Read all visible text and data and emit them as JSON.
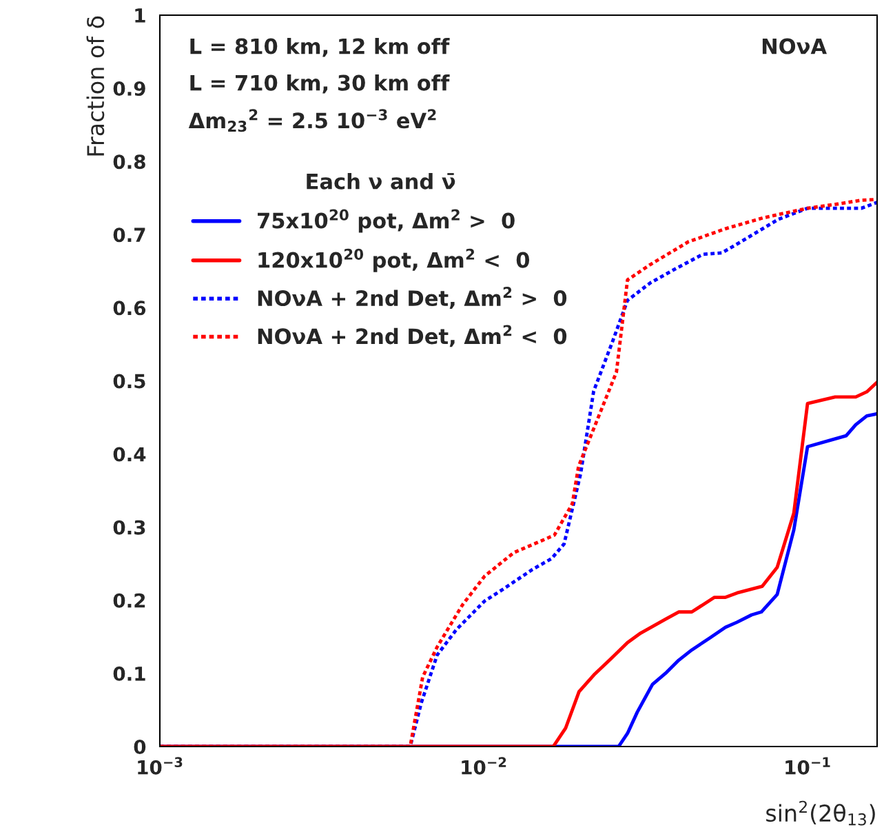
{
  "chart_data": {
    "type": "line",
    "xlabel": "sin$^{2}$(2θ$_{13}$)",
    "ylabel": "Fraction of δ",
    "legend_title": "Each ν and ν̄",
    "legend": "top left",
    "grid": false,
    "log": "x",
    "xlim": [
      0.001,
      0.164
    ],
    "xticks": [
      {
        "value": 0.001,
        "label": "10$^{−3}$"
      },
      {
        "value": 0.01,
        "label": "10$^{−2}$"
      },
      {
        "value": 0.1,
        "label": "10$^{−1}$"
      }
    ],
    "ylim": [
      0,
      1
    ],
    "yticks": [
      0,
      0.1,
      0.2,
      0.3,
      0.4,
      0.5,
      0.6,
      0.7,
      0.8,
      0.9,
      1
    ],
    "annotations": [
      "L = 810 km, 12 km off",
      "L = 710 km, 30 km off",
      "Δm$_{23}$$^{2}$ = 2.5 10$^{−3}$ eV$^{2}$",
      "NOνA"
    ],
    "series": [
      {
        "name": "75x10$^{20}$ pot, Δm$^{2}$ >  0",
        "color": "#0000ff",
        "line_style": "solid",
        "x": [
          0.001,
          0.0261,
          0.0278,
          0.0298,
          0.0332,
          0.0364,
          0.04,
          0.0439,
          0.0501,
          0.0558,
          0.0606,
          0.0672,
          0.072,
          0.0806,
          0.0907,
          0.1,
          0.1181,
          0.1316,
          0.1409,
          0.1524,
          0.164
        ],
        "values": [
          0,
          0,
          0.018,
          0.047,
          0.085,
          0.1,
          0.118,
          0.132,
          0.149,
          0.163,
          0.17,
          0.18,
          0.184,
          0.208,
          0.296,
          0.41,
          0.419,
          0.425,
          0.44,
          0.452,
          0.455
        ]
      },
      {
        "name": "120x10$^{20}$ pot, Δm$^{2}$ <  0",
        "color": "#ff0000",
        "line_style": "solid",
        "x": [
          0.001,
          0.0164,
          0.0179,
          0.0197,
          0.0219,
          0.0247,
          0.0278,
          0.0305,
          0.0364,
          0.04,
          0.0439,
          0.0516,
          0.0558,
          0.0606,
          0.0724,
          0.0806,
          0.0907,
          0.1,
          0.1217,
          0.1409,
          0.1524,
          0.164
        ],
        "values": [
          0,
          0,
          0.025,
          0.075,
          0.098,
          0.12,
          0.142,
          0.155,
          0.174,
          0.184,
          0.184,
          0.204,
          0.204,
          0.21,
          0.219,
          0.245,
          0.319,
          0.469,
          0.478,
          0.478,
          0.485,
          0.498
        ]
      },
      {
        "name": "NOνA + 2nd Det, Δm$^{2}$ >  0",
        "color": "#0000ff",
        "line_style": "dotted",
        "x": [
          0.001,
          0.00593,
          0.00642,
          0.00718,
          0.00824,
          0.01007,
          0.01156,
          0.01413,
          0.01621,
          0.01771,
          0.01992,
          0.02186,
          0.02496,
          0.0278,
          0.0327,
          0.0394,
          0.0475,
          0.0544,
          0.0622,
          0.0814,
          0.1,
          0.1466,
          0.164
        ],
        "values": [
          0,
          0,
          0.06,
          0.125,
          0.16,
          0.199,
          0.216,
          0.242,
          0.257,
          0.277,
          0.373,
          0.486,
          0.553,
          0.61,
          0.634,
          0.654,
          0.673,
          0.675,
          0.69,
          0.721,
          0.736,
          0.736,
          0.744
        ]
      },
      {
        "name": "NOνA + 2nd Det, Δm$^{2}$ <  0",
        "color": "#ff0000",
        "line_style": "dotted",
        "x": [
          0.001,
          0.00593,
          0.00648,
          0.00718,
          0.00861,
          0.01007,
          0.01238,
          0.01448,
          0.01653,
          0.01878,
          0.01963,
          0.0257,
          0.0278,
          0.0327,
          0.0428,
          0.0558,
          0.0731,
          0.1,
          0.1247,
          0.1466,
          0.164
        ],
        "values": [
          0,
          0,
          0.095,
          0.136,
          0.194,
          0.233,
          0.265,
          0.278,
          0.289,
          0.332,
          0.383,
          0.512,
          0.638,
          0.659,
          0.69,
          0.708,
          0.723,
          0.736,
          0.742,
          0.747,
          0.748
        ]
      }
    ]
  }
}
